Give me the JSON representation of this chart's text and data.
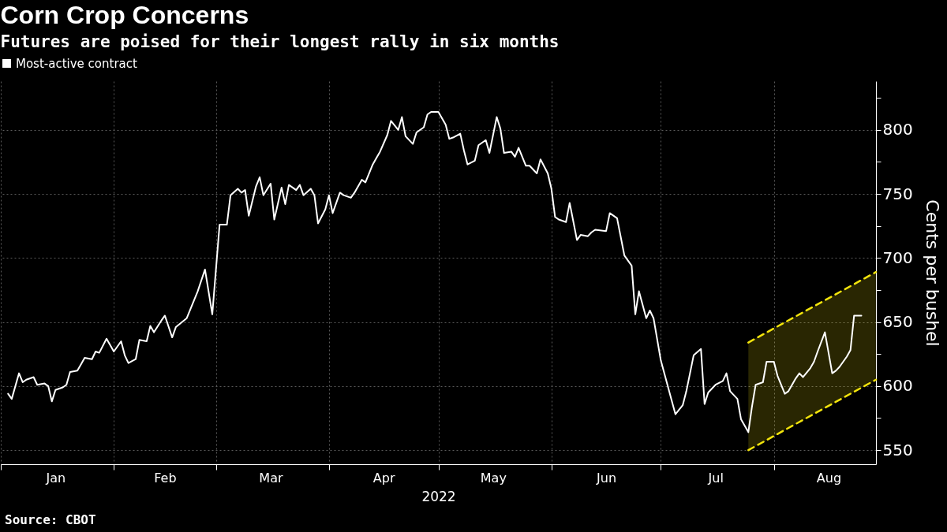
{
  "chart_data": {
    "type": "line",
    "title": "Corn Crop Concerns",
    "subtitle": "Futures are poised for their longest rally in six months",
    "xlabel": "2022",
    "ylabel": "Cents per bushel",
    "annotations": [
      "Source: CBOT"
    ],
    "legend": "top left",
    "grid": true,
    "xlim": [
      "2022-01-01",
      "2022-08-29"
    ],
    "xticks": [
      {
        "value": "2022-01-01",
        "label": null
      },
      {
        "value": "2022-01-16",
        "label": "Jan"
      },
      {
        "value": "2022-02-01",
        "label": null
      },
      {
        "value": "2022-02-15",
        "label": "Feb"
      },
      {
        "value": "2022-03-01",
        "label": null
      },
      {
        "value": "2022-03-16",
        "label": "Mar"
      },
      {
        "value": "2022-04-01",
        "label": null
      },
      {
        "value": "2022-04-16",
        "label": "Apr"
      },
      {
        "value": "2022-05-01",
        "label": null
      },
      {
        "value": "2022-05-16",
        "label": "May"
      },
      {
        "value": "2022-06-01",
        "label": null
      },
      {
        "value": "2022-06-16",
        "label": "Jun"
      },
      {
        "value": "2022-07-01",
        "label": null
      },
      {
        "value": "2022-07-16",
        "label": "Jul"
      },
      {
        "value": "2022-08-01",
        "label": null
      },
      {
        "value": "2022-08-16",
        "label": "Aug"
      }
    ],
    "ylim": [
      539,
      838
    ],
    "yticks": [
      550,
      {
        "value": 575,
        "label": null
      },
      600,
      {
        "value": 625,
        "label": null
      },
      650,
      {
        "value": 675,
        "label": null
      },
      700,
      {
        "value": 725,
        "label": null
      },
      750,
      {
        "value": 775,
        "label": null
      },
      800,
      {
        "value": 825,
        "label": null
      }
    ],
    "series": [
      {
        "name": "Most-active contract",
        "color": "#ffffff",
        "x": [
          "2022-01-03",
          "2022-01-04",
          "2022-01-06",
          "2022-01-07",
          "2022-01-08",
          "2022-01-10",
          "2022-01-11",
          "2022-01-13",
          "2022-01-14",
          "2022-01-15",
          "2022-01-16",
          "2022-01-18",
          "2022-01-19",
          "2022-01-20",
          "2022-01-22",
          "2022-01-23",
          "2022-01-24",
          "2022-01-26",
          "2022-01-27",
          "2022-01-28",
          "2022-01-30",
          "2022-02-01",
          "2022-02-03",
          "2022-02-04",
          "2022-02-05",
          "2022-02-07",
          "2022-02-08",
          "2022-02-10",
          "2022-02-11",
          "2022-02-12",
          "2022-02-14",
          "2022-02-15",
          "2022-02-17",
          "2022-02-18",
          "2022-02-21",
          "2022-02-24",
          "2022-02-26",
          "2022-02-28",
          "2022-03-02",
          "2022-03-04",
          "2022-03-05",
          "2022-03-07",
          "2022-03-08",
          "2022-03-09",
          "2022-03-10",
          "2022-03-12",
          "2022-03-13",
          "2022-03-14",
          "2022-03-16",
          "2022-03-17",
          "2022-03-19",
          "2022-03-20",
          "2022-03-21",
          "2022-03-23",
          "2022-03-24",
          "2022-03-25",
          "2022-03-27",
          "2022-03-28",
          "2022-03-29",
          "2022-03-31",
          "2022-04-01",
          "2022-04-02",
          "2022-04-04",
          "2022-04-05",
          "2022-04-07",
          "2022-04-08",
          "2022-04-10",
          "2022-04-11",
          "2022-04-13",
          "2022-04-14",
          "2022-04-15",
          "2022-04-17",
          "2022-04-18",
          "2022-04-20",
          "2022-04-21",
          "2022-04-22",
          "2022-04-24",
          "2022-04-25",
          "2022-04-27",
          "2022-04-28",
          "2022-04-29",
          "2022-05-01",
          "2022-05-03",
          "2022-05-04",
          "2022-05-05",
          "2022-05-07",
          "2022-05-08",
          "2022-05-09",
          "2022-05-11",
          "2022-05-12",
          "2022-05-14",
          "2022-05-15",
          "2022-05-17",
          "2022-05-18",
          "2022-05-19",
          "2022-05-21",
          "2022-05-22",
          "2022-05-23",
          "2022-05-25",
          "2022-05-26",
          "2022-05-28",
          "2022-05-29",
          "2022-05-31",
          "2022-06-01",
          "2022-06-02",
          "2022-06-03",
          "2022-06-05",
          "2022-06-06",
          "2022-06-08",
          "2022-06-09",
          "2022-06-11",
          "2022-06-12",
          "2022-06-13",
          "2022-06-16",
          "2022-06-17",
          "2022-06-19",
          "2022-06-21",
          "2022-06-23",
          "2022-06-24",
          "2022-06-25",
          "2022-06-27",
          "2022-06-28",
          "2022-06-29",
          "2022-07-01",
          "2022-07-05",
          "2022-07-07",
          "2022-07-08",
          "2022-07-10",
          "2022-07-12",
          "2022-07-13",
          "2022-07-14",
          "2022-07-16",
          "2022-07-18",
          "2022-07-19",
          "2022-07-20",
          "2022-07-22",
          "2022-07-23",
          "2022-07-25",
          "2022-07-26",
          "2022-07-27",
          "2022-07-29",
          "2022-07-30",
          "2022-08-01",
          "2022-08-02",
          "2022-08-04",
          "2022-08-05",
          "2022-08-07",
          "2022-08-08",
          "2022-08-09",
          "2022-08-11",
          "2022-08-12",
          "2022-08-13",
          "2022-08-15",
          "2022-08-17",
          "2022-08-18",
          "2022-08-19",
          "2022-08-21",
          "2022-08-22",
          "2022-08-23",
          "2022-08-25"
        ],
        "values": [
          594,
          590,
          610,
          603,
          605,
          607,
          601,
          602,
          600,
          588,
          597,
          599,
          601,
          611,
          612,
          617,
          622,
          621,
          627,
          626,
          637,
          627,
          635,
          624,
          618,
          621,
          636,
          635,
          647,
          642,
          651,
          655,
          638,
          646,
          653,
          674,
          691,
          656,
          726,
          726,
          749,
          754,
          751,
          753,
          733,
          756,
          763,
          749,
          758,
          730,
          755,
          742,
          757,
          753,
          757,
          749,
          754,
          749,
          727,
          738,
          749,
          735,
          751,
          749,
          747,
          751,
          761,
          759,
          773,
          778,
          783,
          796,
          807,
          800,
          810,
          795,
          789,
          798,
          802,
          812,
          814,
          814,
          804,
          793,
          794,
          797,
          784,
          773,
          776,
          788,
          792,
          782,
          810,
          801,
          782,
          783,
          779,
          786,
          772,
          772,
          766,
          777,
          766,
          754,
          732,
          730,
          728,
          743,
          714,
          718,
          717,
          720,
          722,
          721,
          735,
          731,
          702,
          694,
          656,
          674,
          653,
          659,
          653,
          620,
          578,
          585,
          596,
          624,
          629,
          586,
          595,
          601,
          604,
          610,
          596,
          590,
          574,
          564,
          584,
          601,
          603,
          619,
          619,
          608,
          594,
          596,
          606,
          610,
          607,
          614,
          619,
          627,
          642,
          610,
          612,
          615,
          623,
          628,
          655,
          655
        ]
      },
      {
        "type": "line",
        "color": "#f2e40c",
        "line_style": "dashed",
        "x": [
          "2022-07-25",
          "2022-08-29"
        ],
        "values": [
          634,
          689
        ],
        "lower": [
          550,
          605
        ],
        "upper": [
          634,
          689
        ]
      },
      {
        "type": "line",
        "color": "#f2e40c",
        "line_style": "dashed",
        "x": [
          "2022-07-25",
          "2022-08-29"
        ],
        "values": [
          550,
          605
        ]
      }
    ]
  }
}
